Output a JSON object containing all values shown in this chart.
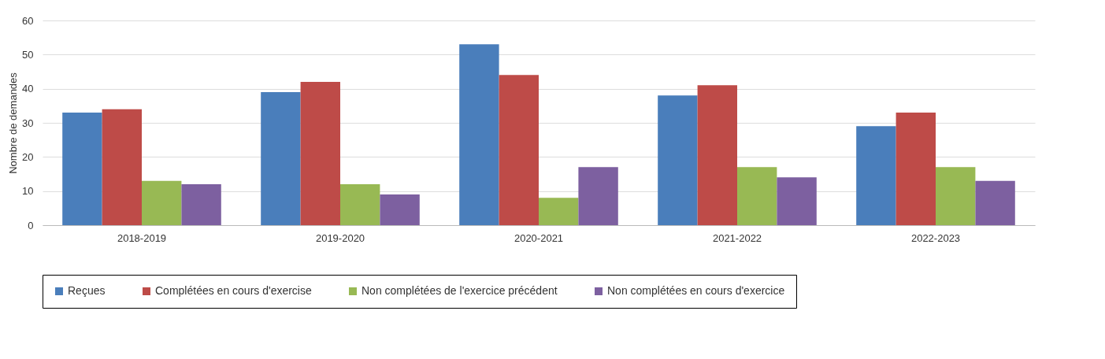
{
  "chart_data": {
    "type": "bar",
    "ylabel": "Nombre de demandes",
    "categories": [
      "2018-2019",
      "2019-2020",
      "2020-2021",
      "2021-2022",
      "2022-2023"
    ],
    "series": [
      {
        "name": "Reçues",
        "color": "#4a7ebb",
        "values": [
          33,
          39,
          53,
          38,
          29
        ]
      },
      {
        "name": "Complétées en cours d'exercise",
        "color": "#be4b48",
        "values": [
          34,
          42,
          44,
          41,
          33
        ]
      },
      {
        "name": "Non complétées de l'exercice précédent",
        "color": "#98b954",
        "values": [
          13,
          12,
          8,
          17,
          17
        ]
      },
      {
        "name": "Non complétées en cours d'exercice",
        "color": "#7d60a0",
        "values": [
          12,
          9,
          17,
          14,
          13
        ]
      }
    ],
    "ylim": [
      0,
      60
    ],
    "yticks": [
      0,
      10,
      20,
      30,
      40,
      50,
      60
    ],
    "grid": "y",
    "legend": "bottom"
  }
}
